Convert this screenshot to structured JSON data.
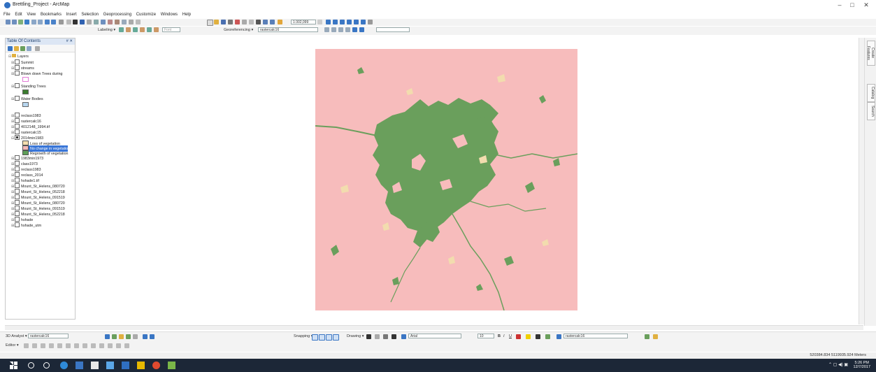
{
  "window": {
    "title": "Brettling_Project - ArcMap",
    "min": "–",
    "max": "□",
    "close": "✕"
  },
  "menu": [
    "File",
    "Edit",
    "View",
    "Bookmarks",
    "Insert",
    "Selection",
    "Geoprocessing",
    "Customize",
    "Windows",
    "Help"
  ],
  "toolbar1": {
    "scale": "1:302,099"
  },
  "toolbar2": {
    "labeling": "Labeling ▾",
    "font_placeholder": "Font",
    "georef": "Georeferencing ▾",
    "georef_layer": "rastercalc16"
  },
  "toc": {
    "title": "Table Of Contents",
    "pin": "# ✕",
    "root": "Layers",
    "layers": [
      {
        "name": "Summit",
        "checked": false
      },
      {
        "name": "streams",
        "checked": false
      },
      {
        "name": "Blown down Trees during",
        "checked": false
      },
      {
        "name": "Standing Trees",
        "checked": false
      },
      {
        "name": "Water Bodies",
        "checked": false
      },
      {
        "name": "reclass1983",
        "checked": false
      },
      {
        "name": "rastercalc16",
        "checked": false
      },
      {
        "name": "4012148_1994.tif",
        "checked": false
      },
      {
        "name": "rastercalc15",
        "checked": false
      },
      {
        "name": "2014min1983",
        "checked": true
      },
      {
        "name": "1983min1973",
        "checked": false
      },
      {
        "name": "class1973",
        "checked": false
      },
      {
        "name": "reclass1983",
        "checked": false
      },
      {
        "name": "reclass_2014",
        "checked": false
      },
      {
        "name": "hshade1.tif",
        "checked": false
      },
      {
        "name": "Mount_St_Helens_080720",
        "checked": false
      },
      {
        "name": "Mount_St_Helens_052218",
        "checked": false
      },
      {
        "name": "Mount_St_Helens_091519",
        "checked": false
      },
      {
        "name": "Mount_St_Helens_080720",
        "checked": false
      },
      {
        "name": "Mount_St_Helens_091519",
        "checked": false
      },
      {
        "name": "Mount_St_Helens_052218",
        "checked": false
      },
      {
        "name": "hshade",
        "checked": false
      },
      {
        "name": "hshade_utm",
        "checked": false
      }
    ],
    "legend": [
      {
        "label": "Loss of vegetation",
        "color": "#f5deb0"
      },
      {
        "label": "No change in vegetatio",
        "color": "#f4b8b8",
        "selected": true
      },
      {
        "label": "Regrowth of vegetation",
        "color": "#5e9e58"
      }
    ]
  },
  "map": {
    "bg_color": "#f7bcbc",
    "veg_color": "#6a9f5c",
    "loss_color": "#f2dcae"
  },
  "right_tabs": [
    "Create Features",
    "Catalog",
    "Search"
  ],
  "bottom": {
    "analyst": "3D Analyst ▾",
    "analyst_layer": "rastercalc16",
    "snapping": "Snapping ▾",
    "drawing": "Drawing ▾",
    "font": "Arial",
    "font_size": "10",
    "bold": "B",
    "italic": "I",
    "underline": "U",
    "layer2": "rastercalc16",
    "editor": "Editor ▾"
  },
  "status": {
    "coords": "520384.834 5119935.924 Meters"
  },
  "taskbar": {
    "time": "5:26 PM",
    "date": "12/7/2017"
  }
}
